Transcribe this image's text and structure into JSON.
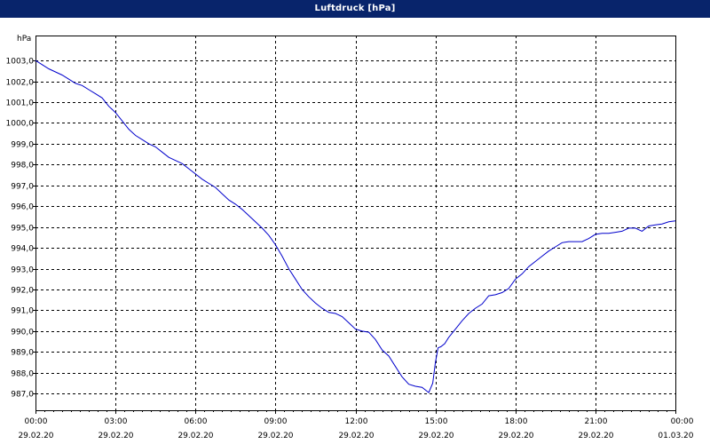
{
  "window": {
    "title": "Luftdruck [hPa]"
  },
  "chart_data": {
    "type": "line",
    "title": "Luftdruck [hPa]",
    "ylabel": "hPa",
    "xlabel": "",
    "ylim": [
      986.2,
      1004.2
    ],
    "yticks": [
      "987,0",
      "988,0",
      "989,0",
      "990,0",
      "991,0",
      "992,0",
      "993,0",
      "994,0",
      "995,0",
      "996,0",
      "997,0",
      "998,0",
      "999,0",
      "1000,0",
      "1001,0",
      "1002,0",
      "1003,0"
    ],
    "ytick_values": [
      987,
      988,
      989,
      990,
      991,
      992,
      993,
      994,
      995,
      996,
      997,
      998,
      999,
      1000,
      1001,
      1002,
      1003
    ],
    "xlim": [
      0,
      24
    ],
    "xticks": [
      {
        "hour": 0,
        "time": "00:00",
        "date": "29.02.20"
      },
      {
        "hour": 3,
        "time": "03:00",
        "date": "29.02.20"
      },
      {
        "hour": 6,
        "time": "06:00",
        "date": "29.02.20"
      },
      {
        "hour": 9,
        "time": "09:00",
        "date": "29.02.20"
      },
      {
        "hour": 12,
        "time": "12:00",
        "date": "29.02.20"
      },
      {
        "hour": 15,
        "time": "15:00",
        "date": "29.02.20"
      },
      {
        "hour": 18,
        "time": "18:00",
        "date": "29.02.20"
      },
      {
        "hour": 21,
        "time": "21:00",
        "date": "29.02.20"
      },
      {
        "hour": 24,
        "time": "00:00",
        "date": "01.03.20"
      }
    ],
    "grid": true,
    "colors": {
      "line": "#0000cc",
      "title_bar": "#08246b",
      "grid": "#000000"
    },
    "series": [
      {
        "x": [
          0,
          0.25,
          0.5,
          0.75,
          1.0,
          1.25,
          1.5,
          1.75,
          2.0,
          2.25,
          2.5,
          2.75,
          3.0,
          3.25,
          3.5,
          3.75,
          4.0,
          4.25,
          4.5,
          4.75,
          5.0,
          5.25,
          5.5,
          5.75,
          6.0,
          6.25,
          6.5,
          6.75,
          7.0,
          7.25,
          7.5,
          7.75,
          8.0,
          8.25,
          8.5,
          8.75,
          9.0,
          9.25,
          9.5,
          9.75,
          10.0,
          10.25,
          10.5,
          10.75,
          11.0,
          11.25,
          11.5,
          11.75,
          12.0,
          12.25,
          12.5,
          12.75,
          13.0,
          13.25,
          13.5,
          13.75,
          14.0,
          14.25,
          14.5,
          14.75,
          14.9,
          15.0,
          15.1,
          15.2,
          15.35,
          15.5,
          15.75,
          16.0,
          16.25,
          16.5,
          16.75,
          17.0,
          17.25,
          17.5,
          17.75,
          18.0,
          18.25,
          18.5,
          18.75,
          19.0,
          19.25,
          19.5,
          19.75,
          20.0,
          20.25,
          20.5,
          20.75,
          21.0,
          21.25,
          21.5,
          21.75,
          22.0,
          22.25,
          22.5,
          22.75,
          23.0,
          23.25,
          23.5,
          23.75,
          24.0
        ],
        "y": [
          1003.0,
          1002.8,
          1002.6,
          1002.45,
          1002.3,
          1002.1,
          1001.9,
          1001.8,
          1001.6,
          1001.4,
          1001.2,
          1000.8,
          1000.5,
          1000.1,
          999.7,
          999.4,
          999.2,
          999.0,
          998.85,
          998.6,
          998.35,
          998.2,
          998.05,
          997.8,
          997.55,
          997.3,
          997.1,
          996.9,
          996.6,
          996.3,
          996.1,
          995.85,
          995.55,
          995.25,
          994.95,
          994.6,
          994.15,
          993.6,
          993.0,
          992.5,
          992.0,
          991.65,
          991.35,
          991.1,
          990.9,
          990.85,
          990.7,
          990.4,
          990.1,
          990.0,
          989.95,
          989.6,
          989.1,
          988.8,
          988.3,
          987.8,
          987.45,
          987.35,
          987.3,
          987.05,
          987.5,
          988.5,
          989.2,
          989.25,
          989.4,
          989.7,
          990.1,
          990.5,
          990.85,
          991.1,
          991.3,
          991.7,
          991.75,
          991.85,
          992.05,
          992.5,
          992.75,
          993.1,
          993.35,
          993.6,
          993.85,
          994.05,
          994.25,
          994.3,
          994.3,
          994.3,
          994.45,
          994.65,
          994.7,
          994.7,
          994.75,
          994.8,
          994.95,
          994.95,
          994.8,
          995.05,
          995.1,
          995.15,
          995.25,
          995.3
        ]
      }
    ]
  }
}
